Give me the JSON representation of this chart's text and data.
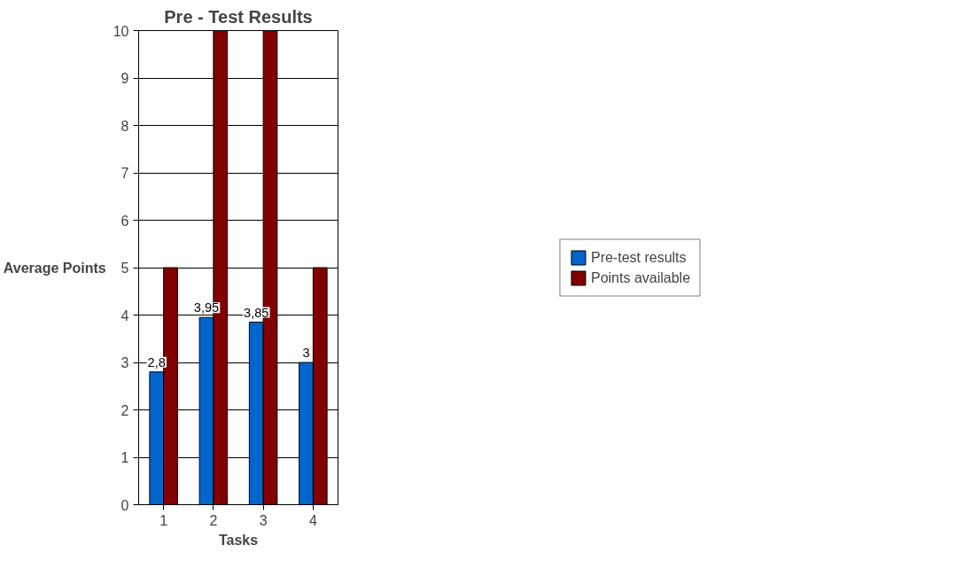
{
  "chart_data": {
    "type": "bar",
    "title": "Pre - Test Results",
    "xlabel": "Tasks",
    "ylabel": "Average Points",
    "categories": [
      "1",
      "2",
      "3",
      "4"
    ],
    "series": [
      {
        "name": "Pre-test results",
        "color": "#0066cc",
        "values": [
          2.8,
          3.95,
          3.85,
          3
        ],
        "value_labels": [
          "2,8",
          "3,95",
          "3,85",
          "3"
        ]
      },
      {
        "name": "Points available",
        "color": "#800000",
        "values": [
          5,
          10,
          10,
          5
        ]
      }
    ],
    "ylim": [
      0,
      10
    ],
    "yticks": [
      0,
      1,
      2,
      3,
      4,
      5,
      6,
      7,
      8,
      9,
      10
    ],
    "grid": "y",
    "legend": "right"
  }
}
